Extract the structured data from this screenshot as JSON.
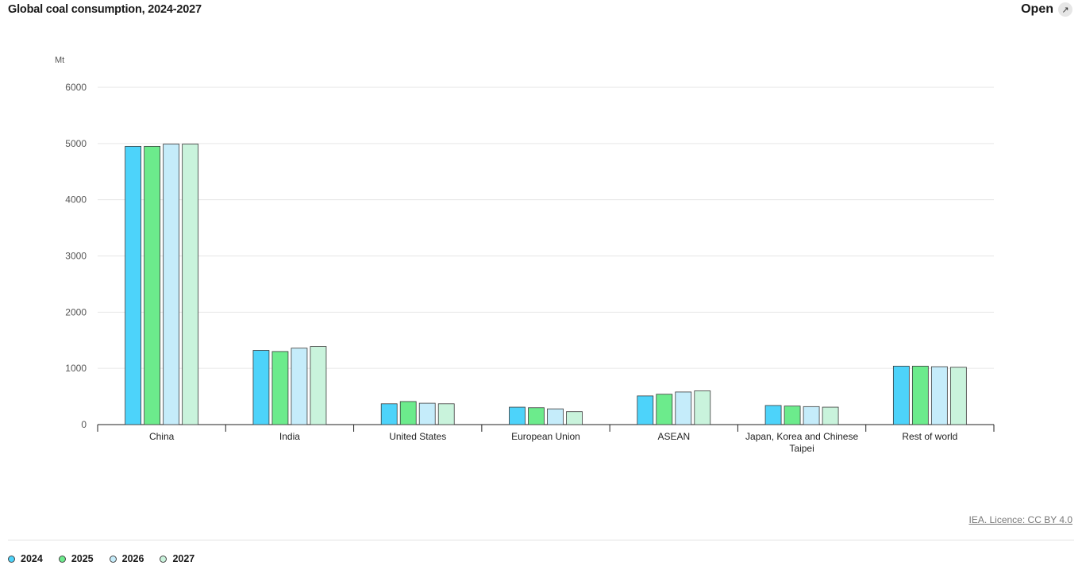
{
  "header": {
    "title": "Global coal consumption, 2024-2027",
    "open_label": "Open",
    "open_icon": "expand-icon"
  },
  "footer": {
    "licence": "IEA. Licence: CC BY 4.0"
  },
  "chart_data": {
    "type": "bar",
    "title": "Global coal consumption, 2024-2027",
    "ylabel": "Mt",
    "xlabel": "",
    "ylim": [
      0,
      6000
    ],
    "yticks": [
      0,
      1000,
      2000,
      3000,
      4000,
      5000,
      6000
    ],
    "grid": true,
    "legend_placement": "bottom-left",
    "categories": [
      "China",
      "India",
      "United States",
      "European Union",
      "ASEAN",
      "Japan, Korea and Chinese Taipei",
      "Rest of world"
    ],
    "category_display": [
      [
        "China"
      ],
      [
        "India"
      ],
      [
        "United States"
      ],
      [
        "European Union"
      ],
      [
        "ASEAN"
      ],
      [
        "Japan, Korea and Chinese",
        "Taipei"
      ],
      [
        "Rest of world"
      ]
    ],
    "series": [
      {
        "name": "2024",
        "color": "#4dd3fa",
        "values": [
          4950,
          1320,
          370,
          310,
          510,
          340,
          1040
        ]
      },
      {
        "name": "2025",
        "color": "#6ceb8c",
        "values": [
          4950,
          1300,
          410,
          300,
          540,
          330,
          1040
        ]
      },
      {
        "name": "2026",
        "color": "#c5ecfa",
        "values": [
          4990,
          1360,
          380,
          280,
          580,
          320,
          1030
        ]
      },
      {
        "name": "2027",
        "color": "#c9f3dc",
        "values": [
          4990,
          1390,
          370,
          230,
          600,
          310,
          1020
        ]
      }
    ]
  }
}
